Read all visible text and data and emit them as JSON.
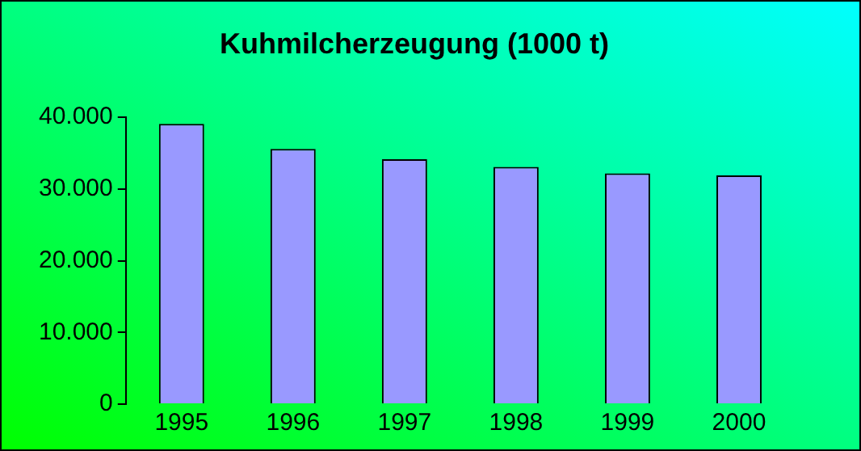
{
  "chart_data": {
    "type": "bar",
    "title": "Kuhmilcherzeugung (1000 t)",
    "categories": [
      "1995",
      "1996",
      "1997",
      "1998",
      "1999",
      "2000"
    ],
    "values": [
      39100,
      35600,
      34150,
      33100,
      32200,
      31900
    ],
    "color": "#9999ff",
    "ylim": [
      0,
      40000
    ],
    "yticks": [
      {
        "value": 0,
        "label": "0"
      },
      {
        "value": 10000,
        "label": "10.000"
      },
      {
        "value": 20000,
        "label": "20.000"
      },
      {
        "value": 30000,
        "label": "30.000"
      },
      {
        "value": 40000,
        "label": "40.000"
      }
    ],
    "grid": false,
    "legend": false
  }
}
